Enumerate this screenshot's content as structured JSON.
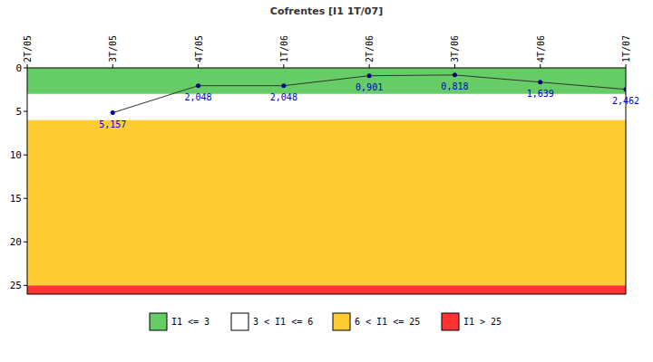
{
  "chart_data": {
    "type": "line",
    "title": "Cofrentes [I1 1T/07]",
    "categories": [
      "2T/05",
      "3T/05",
      "4T/05",
      "1T/06",
      "2T/06",
      "3T/06",
      "4T/06",
      "1T/07"
    ],
    "values": [
      null,
      5.157,
      2.048,
      2.048,
      0.901,
      0.818,
      1.639,
      2.462
    ],
    "value_labels": [
      null,
      "5,157",
      "2,048",
      "2,048",
      "0,901",
      "0,818",
      "1,639",
      "2,462"
    ],
    "color": "#333333",
    "marker": "circle",
    "data_labels": true,
    "grid": false,
    "ylim": [
      0,
      26
    ],
    "yticks": [
      0,
      5,
      10,
      15,
      20,
      25
    ],
    "bands": [
      {
        "name": "I1 <= 3",
        "from": 0,
        "to": 3,
        "color": "#66cc66"
      },
      {
        "name": "3 < I1 <= 6",
        "from": 3,
        "to": 6,
        "color": "#ffffff"
      },
      {
        "name": "6 < I1 <= 25",
        "from": 6,
        "to": 25,
        "color": "#ffcc33"
      },
      {
        "name": "I1 > 25",
        "from": 25,
        "to": 26,
        "color": "#ff3333"
      }
    ],
    "legend": "bottom"
  }
}
